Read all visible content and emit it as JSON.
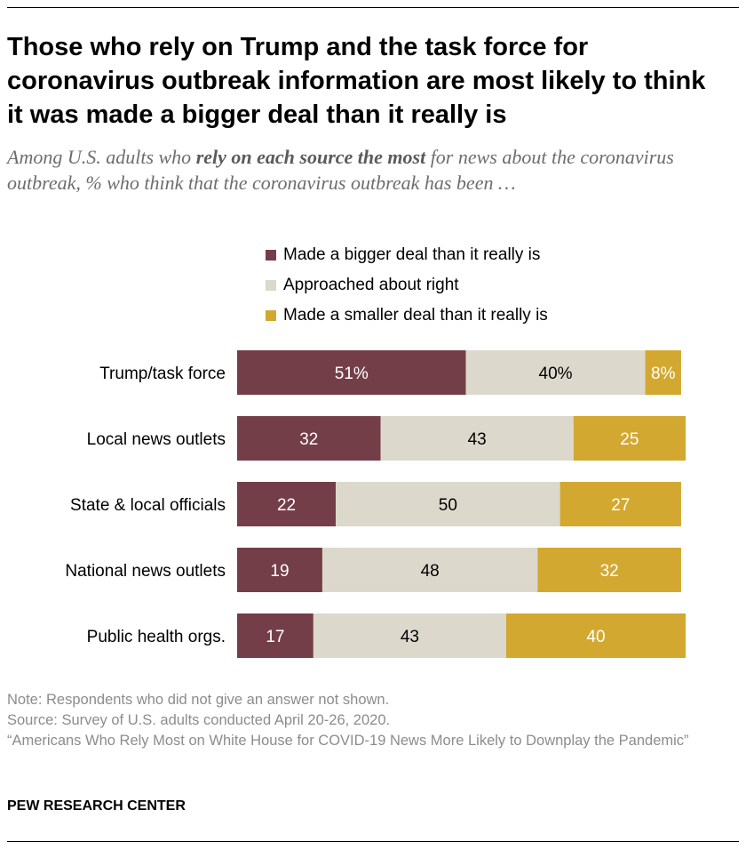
{
  "title": "Those who rely on Trump and the task force for coronavirus outbreak information are most likely to think it was made a bigger deal than it really is",
  "subtitle": {
    "pre": "Among U.S. adults who ",
    "bold": "rely on each source the most",
    "post": " for news about the coronavirus outbreak, % who think that the coronavirus outbreak has been …"
  },
  "colors": {
    "bigger": "#743e48",
    "right": "#dcd8cc",
    "smaller": "#d2a830",
    "label_light": "#ffffff",
    "label_dark": "#000000"
  },
  "chart_data": {
    "type": "bar",
    "orientation": "horizontal",
    "stacked": true,
    "categories": [
      "Trump/task force",
      "Local news outlets",
      "State & local officials",
      "National news outlets",
      "Public health orgs."
    ],
    "series": [
      {
        "name": "Made a bigger deal than it really is",
        "key": "bigger",
        "values": [
          51,
          32,
          22,
          19,
          17
        ],
        "labels": [
          "51%",
          "32",
          "22",
          "19",
          "17"
        ]
      },
      {
        "name": "Approached about right",
        "key": "right",
        "values": [
          40,
          43,
          50,
          48,
          43
        ],
        "labels": [
          "40%",
          "43",
          "50",
          "48",
          "43"
        ]
      },
      {
        "name": "Made a smaller deal than it really is",
        "key": "smaller",
        "values": [
          8,
          25,
          27,
          32,
          40
        ],
        "labels": [
          "8%",
          "25",
          "27",
          "32",
          "40"
        ]
      }
    ],
    "xlim": [
      0,
      100
    ],
    "legend_position": "top"
  },
  "notes": {
    "note": "Note: Respondents who did not give an answer not shown.",
    "source": "Source: Survey of U.S. adults conducted April 20-26, 2020.",
    "report": "“Americans Who Rely Most on White House for COVID-19 News More Likely to Downplay the Pandemic”"
  },
  "brand": "PEW RESEARCH CENTER"
}
